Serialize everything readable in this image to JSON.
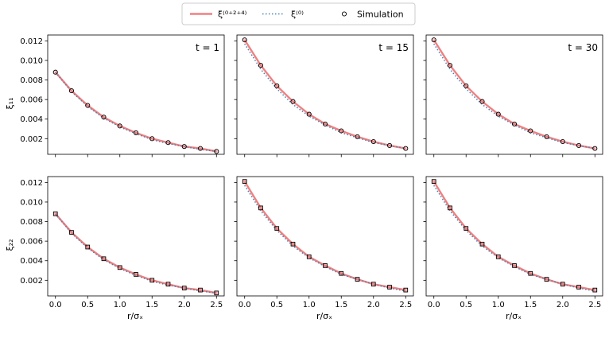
{
  "legend": {
    "items": [
      {
        "label": "ξ⁽⁰⁺²⁺⁴⁾",
        "style": "solid",
        "color": "#f08080"
      },
      {
        "label": "ξ⁽⁰⁾",
        "style": "dotted",
        "color": "#4682b4"
      },
      {
        "label": "Simulation",
        "style": "marker"
      }
    ]
  },
  "row_ylabels": [
    "ξ₁₁",
    "ξ₂₂"
  ],
  "xlabel": "r/σₓ",
  "col_annotations": [
    "t = 1",
    "t = 15",
    "t = 30"
  ],
  "colors": {
    "full": "#f08080",
    "zeroth": "#4682b4",
    "marker_edge": "#000000"
  },
  "chart_data": {
    "type": "line",
    "x_ticks": [
      0.0,
      0.5,
      1.0,
      1.5,
      2.0,
      2.5
    ],
    "x_tick_labels": [
      "0.0",
      "0.5",
      "1.0",
      "1.5",
      "2.0",
      "2.5"
    ],
    "xlim": [
      -0.12,
      2.62
    ],
    "y_ticks": [
      0.002,
      0.004,
      0.006,
      0.008,
      0.01,
      0.012
    ],
    "y_tick_labels": [
      "0.002",
      "0.004",
      "0.006",
      "0.008",
      "0.010",
      "0.012"
    ],
    "ylim": [
      0.0004,
      0.0126
    ],
    "sharex": true,
    "sharey": true,
    "grid": false,
    "legend_placement": "top-center",
    "x": [
      0.0,
      0.25,
      0.5,
      0.75,
      1.0,
      1.25,
      1.5,
      1.75,
      2.0,
      2.25,
      2.5
    ],
    "panels": [
      {
        "row": 0,
        "col": 0,
        "marker": "circle",
        "annotation": "t = 1",
        "series": [
          {
            "name": "ξ⁽⁰⁺²⁺⁴⁾",
            "values": [
              0.0088,
              0.0069,
              0.0054,
              0.0042,
              0.0033,
              0.0026,
              0.002,
              0.0016,
              0.0012,
              0.001,
              0.0007
            ]
          },
          {
            "name": "ξ⁽⁰⁾",
            "values": [
              0.0088,
              0.0068,
              0.0053,
              0.0041,
              0.0032,
              0.0025,
              0.0019,
              0.0015,
              0.0012,
              0.0009,
              0.0007
            ]
          },
          {
            "name": "Simulation",
            "values": [
              0.0088,
              0.0069,
              0.0054,
              0.0042,
              0.0033,
              0.0026,
              0.002,
              0.0016,
              0.0012,
              0.001,
              0.0007
            ]
          }
        ]
      },
      {
        "row": 0,
        "col": 1,
        "marker": "circle",
        "annotation": "t = 15",
        "series": [
          {
            "name": "ξ⁽⁰⁺²⁺⁴⁾",
            "values": [
              0.0121,
              0.0095,
              0.0074,
              0.0058,
              0.0045,
              0.0035,
              0.0028,
              0.0022,
              0.0017,
              0.0013,
              0.001
            ]
          },
          {
            "name": "ξ⁽⁰⁾",
            "values": [
              0.0117,
              0.0091,
              0.0071,
              0.0055,
              0.0043,
              0.0034,
              0.0026,
              0.0021,
              0.0016,
              0.0013,
              0.001
            ]
          },
          {
            "name": "Simulation",
            "values": [
              0.0121,
              0.0095,
              0.0074,
              0.0058,
              0.0045,
              0.0035,
              0.0028,
              0.0022,
              0.0017,
              0.0013,
              0.001
            ]
          }
        ]
      },
      {
        "row": 0,
        "col": 2,
        "marker": "circle",
        "annotation": "t = 30",
        "series": [
          {
            "name": "ξ⁽⁰⁺²⁺⁴⁾",
            "values": [
              0.0121,
              0.0095,
              0.0074,
              0.0058,
              0.0045,
              0.0035,
              0.0028,
              0.0022,
              0.0017,
              0.0013,
              0.001
            ]
          },
          {
            "name": "ξ⁽⁰⁾",
            "values": [
              0.0117,
              0.0091,
              0.0071,
              0.0055,
              0.0043,
              0.0034,
              0.0026,
              0.0021,
              0.0016,
              0.0013,
              0.001
            ]
          },
          {
            "name": "Simulation",
            "values": [
              0.0121,
              0.0095,
              0.0074,
              0.0058,
              0.0045,
              0.0035,
              0.0028,
              0.0022,
              0.0017,
              0.0013,
              0.001
            ]
          }
        ]
      },
      {
        "row": 1,
        "col": 0,
        "marker": "square",
        "annotation": "",
        "series": [
          {
            "name": "ξ⁽⁰⁺²⁺⁴⁾",
            "values": [
              0.0088,
              0.0069,
              0.0054,
              0.0042,
              0.0033,
              0.0026,
              0.002,
              0.0016,
              0.0012,
              0.001,
              0.0007
            ]
          },
          {
            "name": "ξ⁽⁰⁾",
            "values": [
              0.0088,
              0.0068,
              0.0053,
              0.0041,
              0.0032,
              0.0025,
              0.0019,
              0.0015,
              0.0012,
              0.0009,
              0.0007
            ]
          },
          {
            "name": "Simulation",
            "values": [
              0.0088,
              0.0069,
              0.0054,
              0.0042,
              0.0033,
              0.0026,
              0.002,
              0.0016,
              0.0012,
              0.001,
              0.0007
            ]
          }
        ]
      },
      {
        "row": 1,
        "col": 1,
        "marker": "square",
        "annotation": "",
        "series": [
          {
            "name": "ξ⁽⁰⁺²⁺⁴⁾",
            "values": [
              0.0121,
              0.0094,
              0.0073,
              0.0057,
              0.0044,
              0.0035,
              0.0027,
              0.0021,
              0.0016,
              0.0013,
              0.001
            ]
          },
          {
            "name": "ξ⁽⁰⁾",
            "values": [
              0.0117,
              0.0091,
              0.0071,
              0.0055,
              0.0043,
              0.0034,
              0.0026,
              0.0021,
              0.0016,
              0.0012,
              0.0009
            ]
          },
          {
            "name": "Simulation",
            "values": [
              0.0121,
              0.0094,
              0.0073,
              0.0057,
              0.0044,
              0.0035,
              0.0027,
              0.0021,
              0.0016,
              0.0013,
              0.001
            ]
          }
        ]
      },
      {
        "row": 1,
        "col": 2,
        "marker": "square",
        "annotation": "",
        "series": [
          {
            "name": "ξ⁽⁰⁺²⁺⁴⁾",
            "values": [
              0.0121,
              0.0094,
              0.0073,
              0.0057,
              0.0044,
              0.0035,
              0.0027,
              0.0021,
              0.0016,
              0.0013,
              0.001
            ]
          },
          {
            "name": "ξ⁽⁰⁾",
            "values": [
              0.0117,
              0.0091,
              0.0071,
              0.0055,
              0.0043,
              0.0034,
              0.0026,
              0.0021,
              0.0016,
              0.0012,
              0.0009
            ]
          },
          {
            "name": "Simulation",
            "values": [
              0.0121,
              0.0094,
              0.0073,
              0.0057,
              0.0044,
              0.0035,
              0.0027,
              0.0021,
              0.0016,
              0.0013,
              0.001
            ]
          }
        ]
      }
    ]
  }
}
